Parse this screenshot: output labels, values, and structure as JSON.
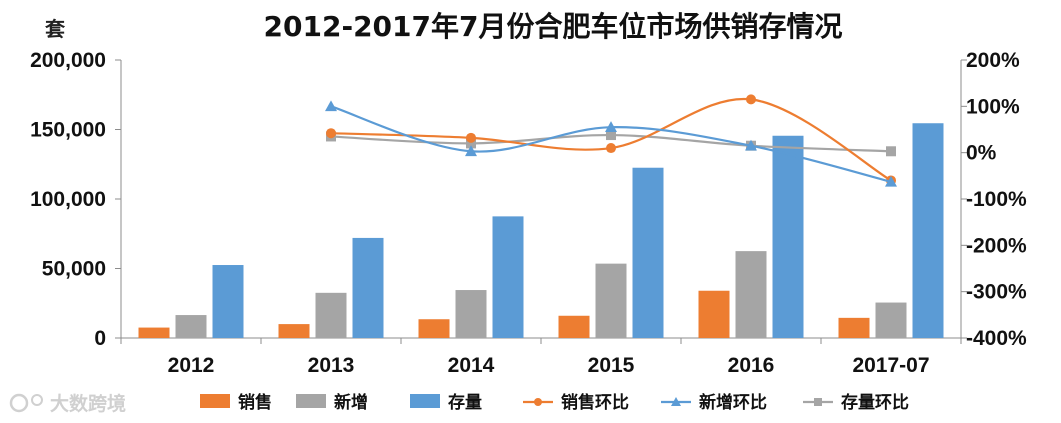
{
  "chart_data": {
    "type": "bar+line",
    "title": "2012-2017年7月份合肥车位市场供销存情况",
    "left_axis_unit": "套",
    "categories": [
      "2012",
      "2013",
      "2014",
      "2015",
      "2016",
      "2017-07"
    ],
    "left_axis": {
      "ylim": [
        0,
        200000
      ],
      "ticks": [
        "0",
        "50,000",
        "100,000",
        "150,000",
        "200,000"
      ],
      "tick_values": [
        0,
        50000,
        100000,
        150000,
        200000
      ]
    },
    "right_axis": {
      "ylim": [
        -400,
        200
      ],
      "ticks": [
        "-400%",
        "-300%",
        "-200%",
        "-100%",
        "0%",
        "100%",
        "200%"
      ],
      "tick_values": [
        -400,
        -300,
        -200,
        -100,
        0,
        100,
        200
      ]
    },
    "bar_series": [
      {
        "name": "销售",
        "color": "#ed7d31",
        "values": [
          7500,
          10000,
          13500,
          16000,
          34000,
          14500
        ]
      },
      {
        "name": "新增",
        "color": "#a5a5a5",
        "values": [
          16500,
          32500,
          34500,
          53500,
          62500,
          25500
        ]
      },
      {
        "name": "存量",
        "color": "#5b9bd5",
        "values": [
          52500,
          72000,
          87500,
          122500,
          145500,
          154500
        ]
      }
    ],
    "line_series": [
      {
        "name": "销售环比",
        "color": "#ed7d31",
        "marker": "circle",
        "values": [
          null,
          42,
          32,
          10,
          115,
          -60
        ]
      },
      {
        "name": "新增环比",
        "color": "#5b9bd5",
        "marker": "triangle",
        "values": [
          null,
          100,
          3,
          55,
          15,
          -63
        ]
      },
      {
        "name": "存量环比",
        "color": "#a5a5a5",
        "marker": "square",
        "values": [
          null,
          35,
          20,
          38,
          15,
          3
        ]
      }
    ],
    "legend": [
      "销售",
      "新增",
      "存量",
      "销售环比",
      "新增环比",
      "存量环比"
    ],
    "legend_position": "bottom"
  },
  "watermark": "大数跨境"
}
